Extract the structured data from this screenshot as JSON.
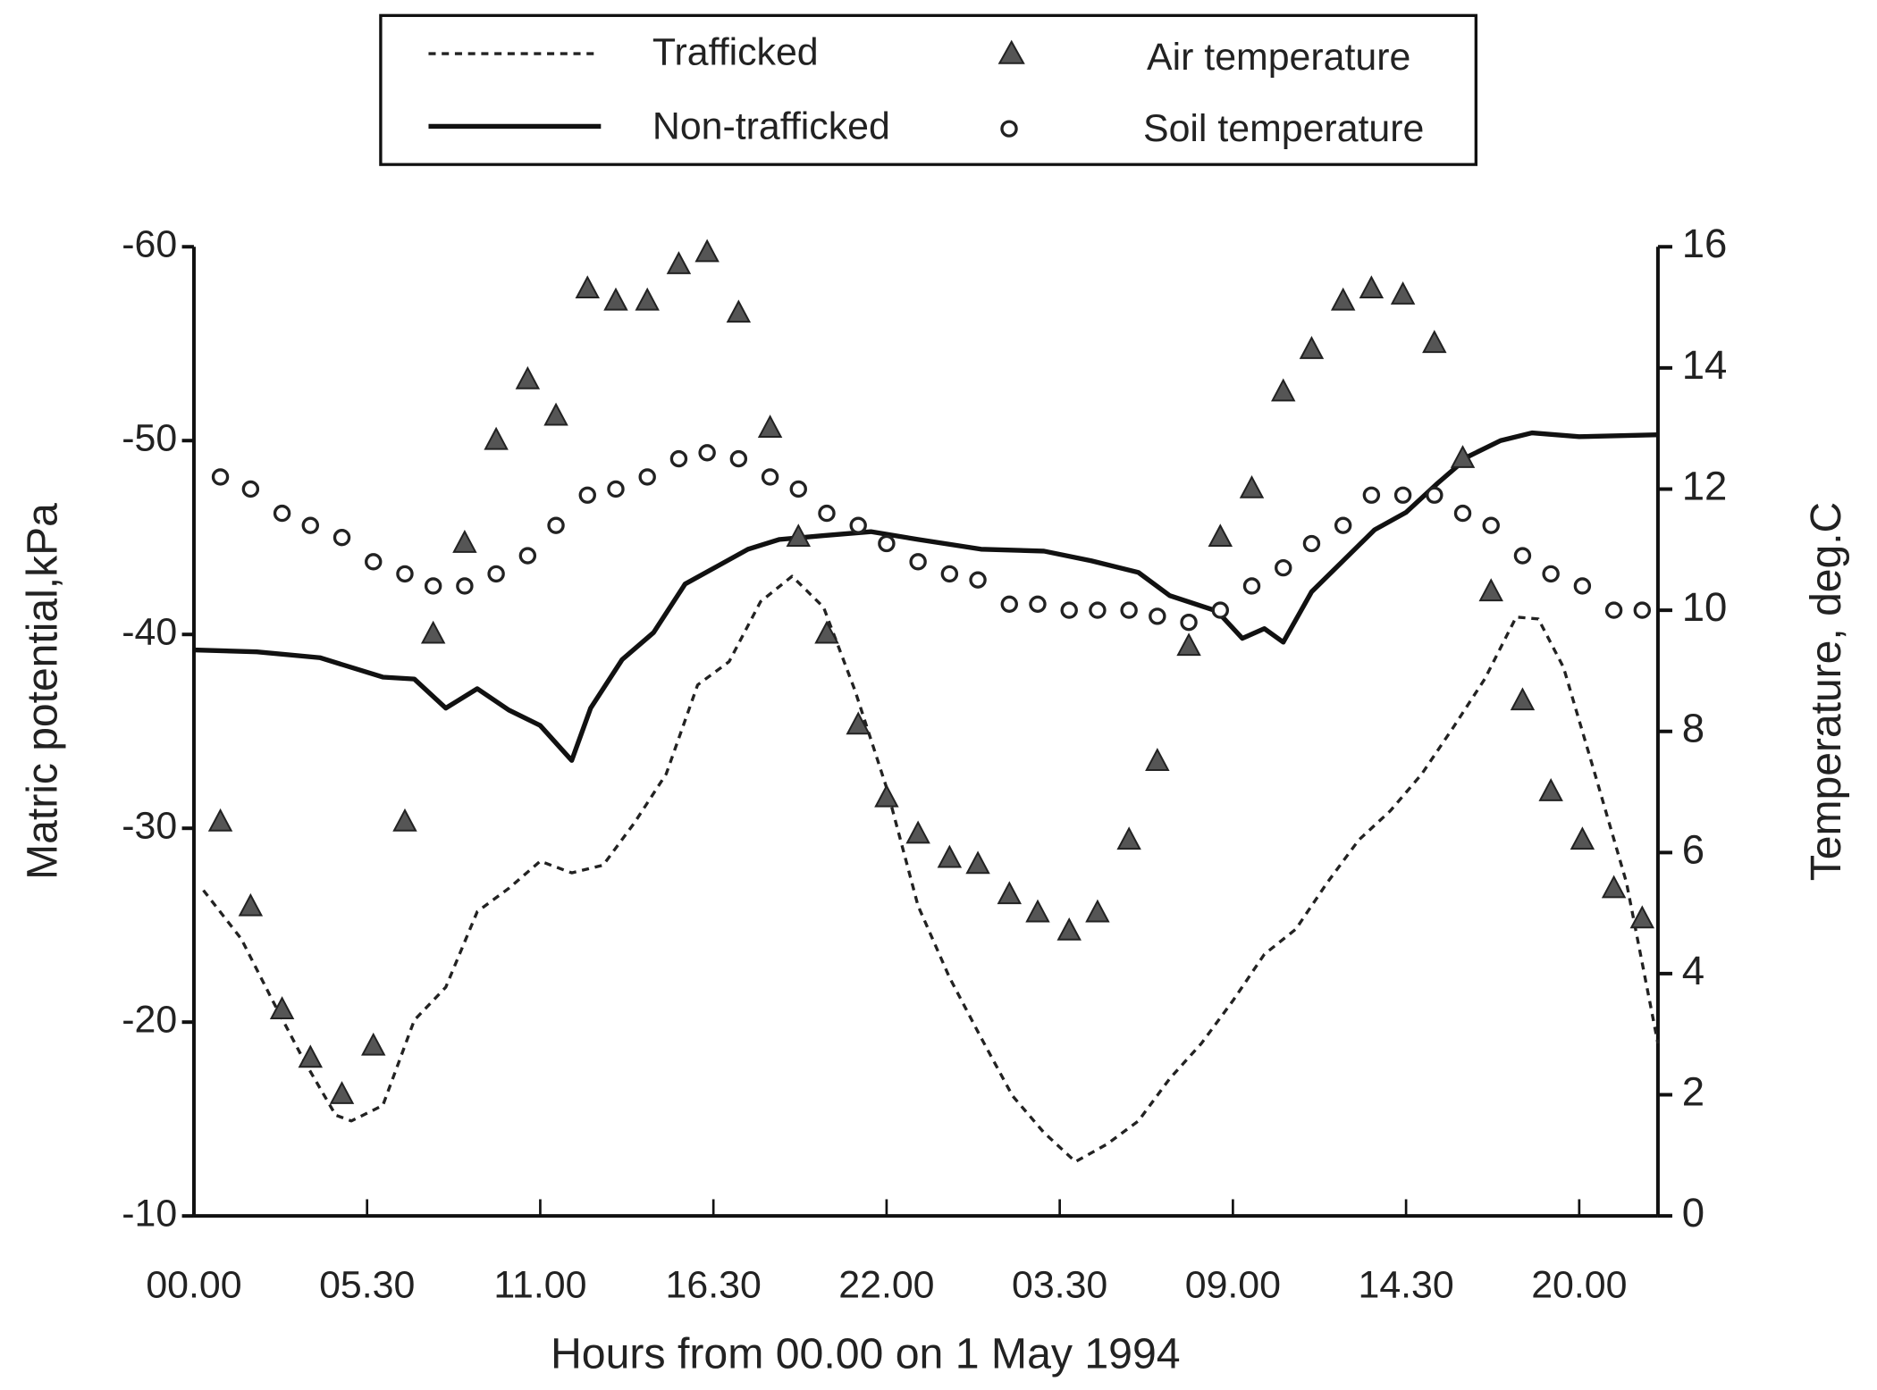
{
  "chart_data": {
    "type": "line",
    "xlabel": "Hours from 00.00 on 1 May 1994",
    "ylabel": "Matric potential,kPa",
    "y2label": "Temperature, deg.C",
    "xlim": [
      0,
      46.5
    ],
    "xticks": [
      {
        "value": 0,
        "label": "00.00"
      },
      {
        "value": 5.5,
        "label": "05.30"
      },
      {
        "value": 11,
        "label": "11.00"
      },
      {
        "value": 16.5,
        "label": "16.30"
      },
      {
        "value": 22,
        "label": "22.00"
      },
      {
        "value": 27.5,
        "label": "03.30"
      },
      {
        "value": 33,
        "label": "09.00"
      },
      {
        "value": 38.5,
        "label": "14.30"
      },
      {
        "value": 44,
        "label": "20.00"
      }
    ],
    "ylim": [
      -10,
      -60
    ],
    "yticks": [
      -60,
      -50,
      -40,
      -30,
      -20,
      -10
    ],
    "y2lim": [
      0,
      16
    ],
    "y2ticks": [
      0,
      2,
      4,
      6,
      8,
      10,
      12,
      14,
      16
    ],
    "series": [
      {
        "name": "Trafficked",
        "type": "line",
        "linestyle": "dashed",
        "color": "#222",
        "x": [
          0.3,
          1.5,
          2.5,
          3.5,
          4.5,
          5,
          6,
          7,
          8,
          9,
          10,
          11,
          12,
          13,
          14,
          15,
          16,
          17,
          18,
          19,
          20,
          21,
          22,
          23,
          24,
          25,
          26,
          27,
          28,
          29,
          30,
          31,
          32,
          33,
          34,
          35,
          36,
          37,
          38,
          39,
          40,
          41,
          42,
          42.7,
          43.5,
          44.5,
          45.5,
          46.5
        ],
        "values": [
          -26.8,
          -24.3,
          -21.1,
          -18.0,
          -15.2,
          -14.9,
          -15.7,
          -20.1,
          -21.8,
          -25.7,
          -26.9,
          -28.3,
          -27.7,
          -28.1,
          -30.3,
          -32.8,
          -37.4,
          -38.6,
          -41.7,
          -43.0,
          -41.4,
          -37.1,
          -32.1,
          -26.0,
          -22.3,
          -19.2,
          -16.2,
          -14.3,
          -12.8,
          -13.7,
          -14.9,
          -17.1,
          -18.9,
          -21.1,
          -23.5,
          -24.8,
          -27.2,
          -29.4,
          -30.9,
          -32.8,
          -35.2,
          -37.7,
          -40.9,
          -40.8,
          -38.3,
          -32.8,
          -27.2,
          -18.9
        ]
      },
      {
        "name": "Non-trafficked",
        "type": "line",
        "linestyle": "solid",
        "color": "#111",
        "x": [
          0,
          2,
          4,
          6,
          7,
          8,
          9,
          10,
          11,
          12,
          12.6,
          13.6,
          14.6,
          15.6,
          16.6,
          17.6,
          18.6,
          20,
          21.5,
          23,
          25,
          27,
          28.5,
          30,
          31,
          32.5,
          33.3,
          34,
          34.6,
          35.5,
          36.5,
          37.5,
          38.5,
          39.5,
          40.5,
          41.5,
          42.5,
          44,
          46.5
        ],
        "values": [
          -39.2,
          -39.1,
          -38.8,
          -37.8,
          -37.7,
          -36.2,
          -37.2,
          -36.1,
          -35.3,
          -33.5,
          -36.2,
          -38.7,
          -40.1,
          -42.6,
          -43.5,
          -44.4,
          -44.9,
          -45.1,
          -45.3,
          -44.9,
          -44.4,
          -44.3,
          -43.8,
          -43.2,
          -42.0,
          -41.2,
          -39.8,
          -40.3,
          -39.6,
          -42.2,
          -43.8,
          -45.4,
          -46.3,
          -47.8,
          -49.2,
          -50.0,
          -50.4,
          -50.2,
          -50.3
        ]
      },
      {
        "name": "Air temperature",
        "type": "scatter",
        "marker": "triangle",
        "axis": "y2",
        "color": "#555",
        "x": [
          0.84,
          1.8,
          2.8,
          3.7,
          4.7,
          5.7,
          6.7,
          7.6,
          8.6,
          9.6,
          10.6,
          11.5,
          12.5,
          13.4,
          14.4,
          15.4,
          16.3,
          17.3,
          18.3,
          19.2,
          20.1,
          21.1,
          22.0,
          23.0,
          24.0,
          24.9,
          25.9,
          26.8,
          27.8,
          28.7,
          29.7,
          30.6,
          31.6,
          32.6,
          33.6,
          34.6,
          35.5,
          36.5,
          37.4,
          38.4,
          39.4,
          40.3,
          41.2,
          42.2,
          43.1,
          44.1,
          45.1,
          46.0
        ],
        "values": [
          6.5,
          5.1,
          3.4,
          2.6,
          2.0,
          2.8,
          6.5,
          9.6,
          11.1,
          12.8,
          13.8,
          13.2,
          15.3,
          15.1,
          15.1,
          15.7,
          15.9,
          14.9,
          13.0,
          11.2,
          9.6,
          8.1,
          6.9,
          6.3,
          5.9,
          5.8,
          5.3,
          5.0,
          4.7,
          5.0,
          6.2,
          7.5,
          9.4,
          11.2,
          12.0,
          13.6,
          14.3,
          15.1,
          15.3,
          15.2,
          14.4,
          12.5,
          10.3,
          8.5,
          7.0,
          6.2,
          5.4,
          4.9
        ]
      },
      {
        "name": "Soil temperature",
        "type": "scatter",
        "marker": "circle",
        "axis": "y2",
        "color": "#222",
        "x": [
          0.84,
          1.8,
          2.8,
          3.7,
          4.7,
          5.7,
          6.7,
          7.6,
          8.6,
          9.6,
          10.6,
          11.5,
          12.5,
          13.4,
          14.4,
          15.4,
          16.3,
          17.3,
          18.3,
          19.2,
          20.1,
          21.1,
          22.0,
          23.0,
          24.0,
          24.9,
          25.9,
          26.8,
          27.8,
          28.7,
          29.7,
          30.6,
          31.6,
          32.6,
          33.6,
          34.6,
          35.5,
          36.5,
          37.4,
          38.4,
          39.4,
          40.3,
          41.2,
          42.2,
          43.1,
          44.1,
          45.1,
          46.0
        ],
        "values": [
          12.2,
          12.0,
          11.6,
          11.4,
          11.2,
          10.8,
          10.6,
          10.4,
          10.4,
          10.6,
          10.9,
          11.4,
          11.9,
          12.0,
          12.2,
          12.5,
          12.6,
          12.5,
          12.2,
          12.0,
          11.6,
          11.4,
          11.1,
          10.8,
          10.6,
          10.5,
          10.1,
          10.1,
          10.0,
          10.0,
          10.0,
          9.9,
          9.8,
          10.0,
          10.4,
          10.7,
          11.1,
          11.4,
          11.9,
          11.9,
          11.9,
          11.6,
          11.4,
          10.9,
          10.6,
          10.4,
          10.0,
          10.0
        ]
      }
    ]
  }
}
